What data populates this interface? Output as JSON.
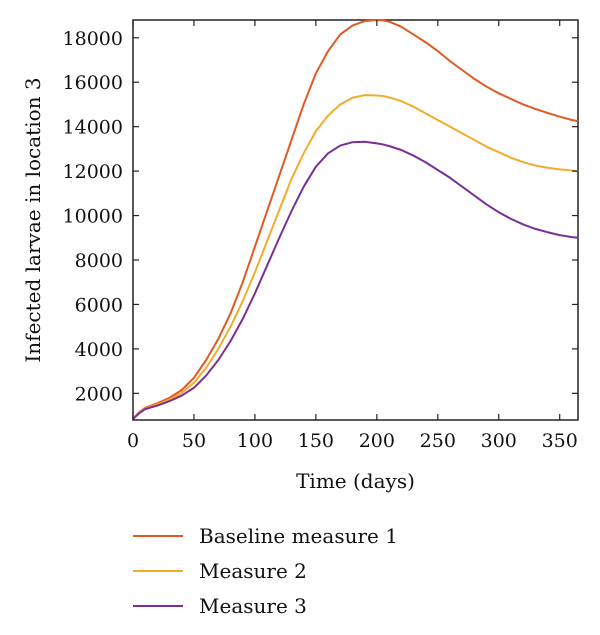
{
  "chart_data": {
    "type": "line",
    "title": "",
    "xlabel": "Time (days)",
    "ylabel": "Infected larvae in location 3",
    "xlim": [
      0,
      365
    ],
    "ylim": [
      800,
      18800
    ],
    "x_ticks": [
      0,
      50,
      100,
      150,
      200,
      250,
      300,
      350
    ],
    "y_ticks": [
      2000,
      4000,
      6000,
      8000,
      10000,
      12000,
      14000,
      16000,
      18000
    ],
    "grid": false,
    "legend_position": "bottom",
    "x": [
      0,
      5,
      10,
      20,
      30,
      40,
      50,
      60,
      70,
      80,
      90,
      100,
      110,
      120,
      130,
      140,
      150,
      160,
      170,
      180,
      190,
      200,
      205,
      210,
      220,
      230,
      240,
      250,
      260,
      270,
      280,
      290,
      300,
      310,
      320,
      330,
      340,
      350,
      360,
      365
    ],
    "series": [
      {
        "name": "Baseline measure 1",
        "color": "#e05a22",
        "values": [
          850,
          1150,
          1350,
          1550,
          1800,
          2150,
          2700,
          3500,
          4450,
          5600,
          7000,
          8600,
          10200,
          11800,
          13400,
          15000,
          16400,
          17400,
          18150,
          18550,
          18750,
          18800,
          18780,
          18730,
          18500,
          18150,
          17800,
          17400,
          16950,
          16550,
          16150,
          15800,
          15500,
          15250,
          15000,
          14800,
          14620,
          14450,
          14300,
          14250
        ]
      },
      {
        "name": "Measure 2",
        "color": "#f2ac2c",
        "values": [
          850,
          1130,
          1320,
          1500,
          1720,
          2020,
          2480,
          3150,
          4000,
          5000,
          6150,
          7450,
          8850,
          10250,
          11650,
          12800,
          13800,
          14500,
          15000,
          15300,
          15420,
          15400,
          15380,
          15320,
          15150,
          14900,
          14600,
          14300,
          14000,
          13700,
          13400,
          13100,
          12850,
          12600,
          12400,
          12250,
          12150,
          12080,
          12030,
          12000
        ]
      },
      {
        "name": "Measure 3",
        "color": "#7a2f96",
        "values": [
          850,
          1100,
          1290,
          1450,
          1650,
          1900,
          2250,
          2800,
          3500,
          4350,
          5350,
          6500,
          7750,
          9000,
          10200,
          11300,
          12200,
          12800,
          13150,
          13300,
          13320,
          13250,
          13200,
          13130,
          12950,
          12700,
          12400,
          12050,
          11700,
          11300,
          10900,
          10500,
          10150,
          9850,
          9600,
          9400,
          9250,
          9120,
          9030,
          9000
        ]
      }
    ]
  }
}
